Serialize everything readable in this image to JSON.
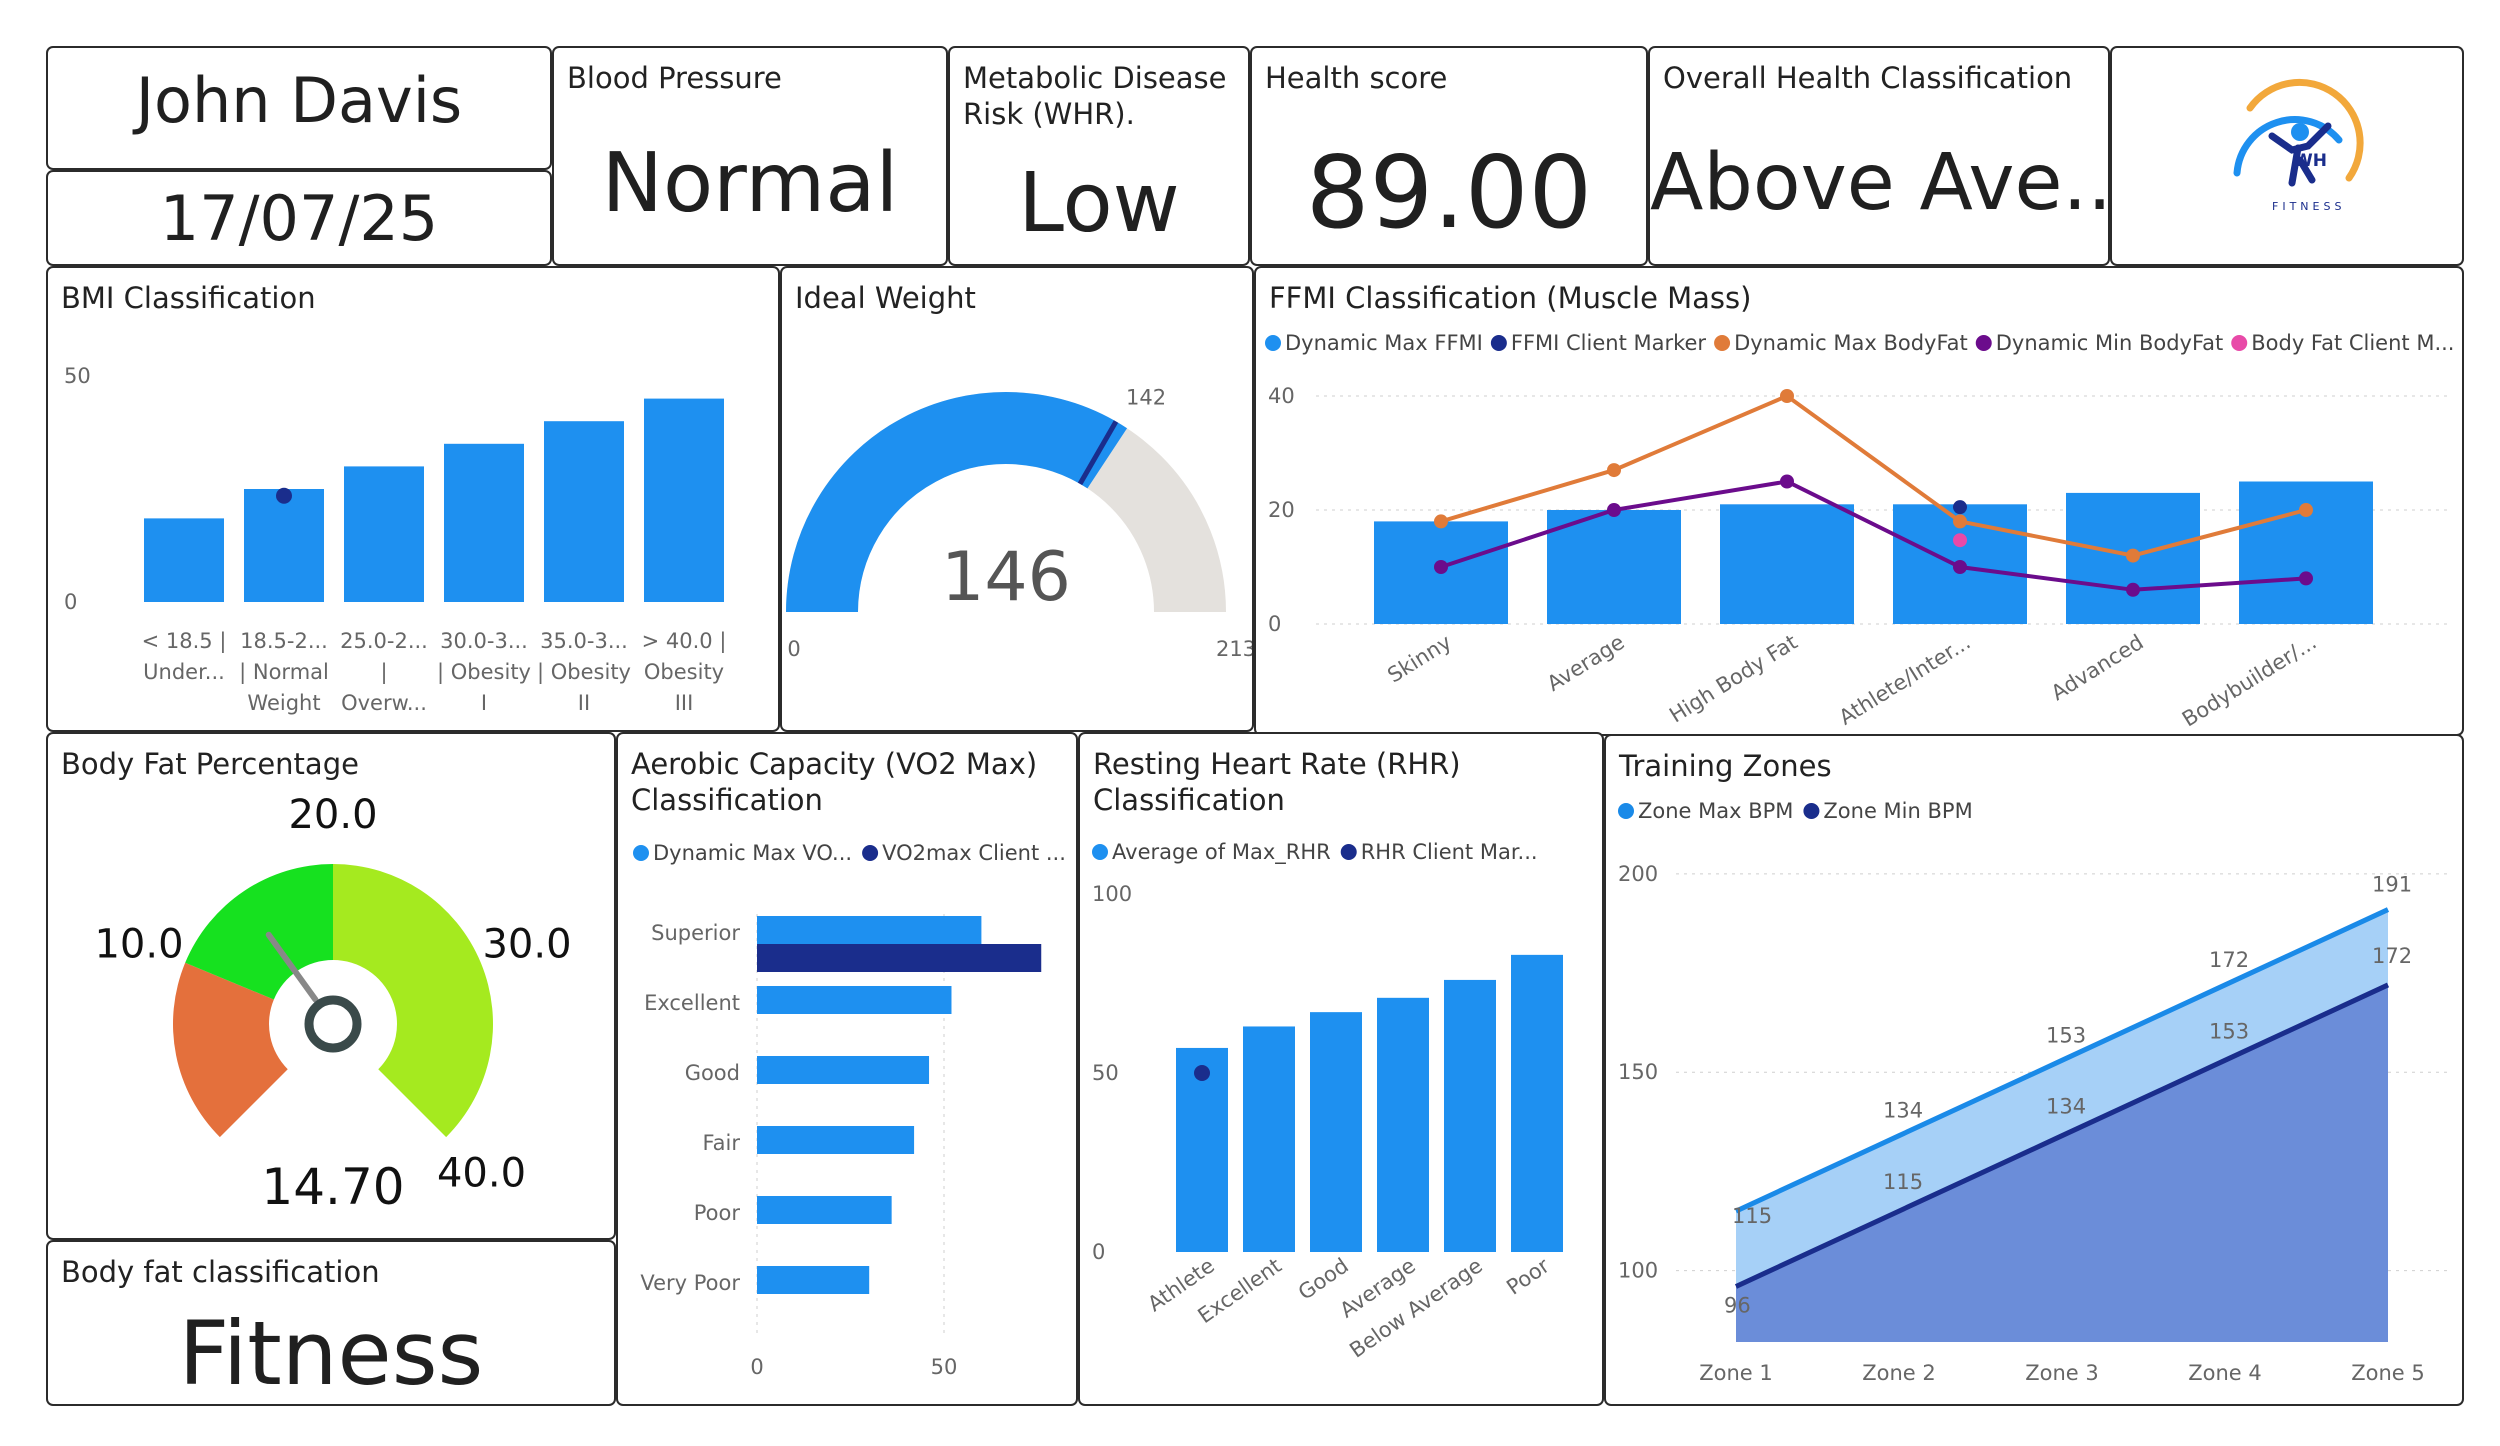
{
  "client": {
    "name": "John Davis",
    "date": "17/07/25"
  },
  "kpis": {
    "bp": {
      "label": "Blood Pressure",
      "value": "Normal"
    },
    "metabolic": {
      "label": "Metabolic Disease Risk (WHR).",
      "value": "Low"
    },
    "health": {
      "label": "Health score",
      "value": "89.00"
    },
    "overall": {
      "label": "Overall Health Classification",
      "value": "Above Ave..."
    }
  },
  "logo": {
    "text": "WH",
    "sub": "FITNESS"
  },
  "bodyfat_class": {
    "label": "Body fat classification",
    "value": "Fitness"
  },
  "colors": {
    "blue": "#1e90f0",
    "navy": "#1a2d8c",
    "orange": "#e07b39",
    "purple": "#6b0c8c",
    "pink": "#e84aa8",
    "grey": "#e4e1dd",
    "lime": "#a5ea1f",
    "green": "#16e11f",
    "gauge_orange": "#e4703c",
    "area_light": "#a6d0f7",
    "area_dark": "#6b8dd9",
    "area_line_light": "#1a8ae8",
    "area_line_dark": "#1a2d8c"
  },
  "chart_data": [
    {
      "id": "bmi",
      "type": "bar",
      "title": "BMI Classification",
      "categories": [
        [
          "< 18.5 |",
          "Under..."
        ],
        [
          "18.5-2...",
          "| Normal",
          "Weight"
        ],
        [
          "25.0-2...",
          "|",
          "Overw..."
        ],
        [
          "30.0-3...",
          "| Obesity",
          "I"
        ],
        [
          "35.0-3...",
          "| Obesity",
          "II"
        ],
        [
          "> 40.0 |",
          "Obesity",
          "III"
        ]
      ],
      "values": [
        18.5,
        25,
        30,
        35,
        40,
        45
      ],
      "client_marker": {
        "category_index": 1,
        "value": 23.5
      },
      "ylim": [
        0,
        50
      ],
      "yticks": [
        0,
        50
      ]
    },
    {
      "id": "ideal",
      "type": "gauge",
      "title": "Ideal Weight",
      "value": 146,
      "min": 0,
      "max": 213,
      "target": 142
    },
    {
      "id": "ffmi",
      "type": "bar",
      "title": "FFMI Classification (Muscle Mass)",
      "legend": [
        "Dynamic Max FFMI",
        "FFMI Client Marker",
        "Dynamic Max BodyFat",
        "Dynamic Min BodyFat",
        "Body Fat Client M..."
      ],
      "categories": [
        "Skinny",
        "Average",
        "High Body Fat",
        "Athlete/Inter...",
        "Advanced",
        "Bodybuilder/..."
      ],
      "series": [
        {
          "name": "Dynamic Max FFMI",
          "kind": "bar",
          "values": [
            18,
            20,
            21,
            21,
            23,
            25
          ]
        },
        {
          "name": "Dynamic Max BodyFat",
          "kind": "line",
          "values": [
            18,
            27,
            40,
            18,
            12,
            20
          ]
        },
        {
          "name": "Dynamic Min BodyFat",
          "kind": "line",
          "values": [
            10,
            20,
            25,
            10,
            6,
            8
          ]
        }
      ],
      "client_ffmi": {
        "category_index": 3,
        "value": 20.5
      },
      "client_bodyfat": {
        "category_index": 3,
        "value": 14.7
      },
      "ylim": [
        0,
        40
      ],
      "yticks": [
        0,
        20,
        40
      ]
    },
    {
      "id": "bodyfat",
      "type": "gauge",
      "title": "Body Fat Percentage",
      "value": 14.7,
      "display": "14.70",
      "min": 0,
      "max": 40,
      "bands": [
        {
          "from": 0,
          "to": 10
        },
        {
          "from": 10,
          "to": 20
        },
        {
          "from": 20,
          "to": 40
        }
      ],
      "labels": [
        {
          "v": 10,
          "t": "10.0"
        },
        {
          "v": 20,
          "t": "20.0"
        },
        {
          "v": 30,
          "t": "30.0"
        },
        {
          "v": 40,
          "t": "40.0"
        }
      ]
    },
    {
      "id": "vo2",
      "type": "bar",
      "orientation": "horizontal",
      "title": [
        "Aerobic Capacity (VO2 Max)",
        "Classification"
      ],
      "legend": [
        "Dynamic Max VO...",
        "VO2max Client ..."
      ],
      "categories": [
        "Superior",
        "Excellent",
        "Good",
        "Fair",
        "Poor",
        "Very Poor"
      ],
      "values": [
        60,
        52,
        46,
        42,
        36,
        30
      ],
      "client": {
        "category_index": 0,
        "value": 76
      },
      "xlim": [
        0,
        80
      ],
      "xticks": [
        0,
        50
      ]
    },
    {
      "id": "rhr",
      "type": "bar",
      "title": [
        "Resting Heart Rate (RHR)",
        "Classification"
      ],
      "legend": [
        "Average of Max_RHR",
        "RHR Client Mar..."
      ],
      "categories": [
        "Athlete",
        "Excellent",
        "Good",
        "Average",
        "Below Average",
        "Poor"
      ],
      "values": [
        57,
        63,
        67,
        71,
        76,
        83
      ],
      "client": {
        "category_index": 0,
        "value": 50
      },
      "ylim": [
        0,
        100
      ],
      "yticks": [
        0,
        50,
        100
      ]
    },
    {
      "id": "zones",
      "type": "area",
      "title": "Training Zones",
      "legend": [
        "Zone Max BPM",
        "Zone Min BPM"
      ],
      "categories": [
        "Zone 1",
        "Zone 2",
        "Zone 3",
        "Zone 4",
        "Zone 5"
      ],
      "series": [
        {
          "name": "Zone Max BPM",
          "values": [
            115,
            134,
            153,
            172,
            191
          ]
        },
        {
          "name": "Zone Min BPM",
          "values": [
            96,
            115,
            134,
            153,
            172
          ]
        }
      ],
      "data_labels": {
        "max": [
          "115",
          "134",
          "153",
          "172",
          "191"
        ],
        "min": [
          "96",
          "115",
          "134",
          "153",
          "172"
        ]
      },
      "ylim": [
        82,
        204
      ],
      "yticks": [
        100,
        150,
        200
      ]
    }
  ]
}
